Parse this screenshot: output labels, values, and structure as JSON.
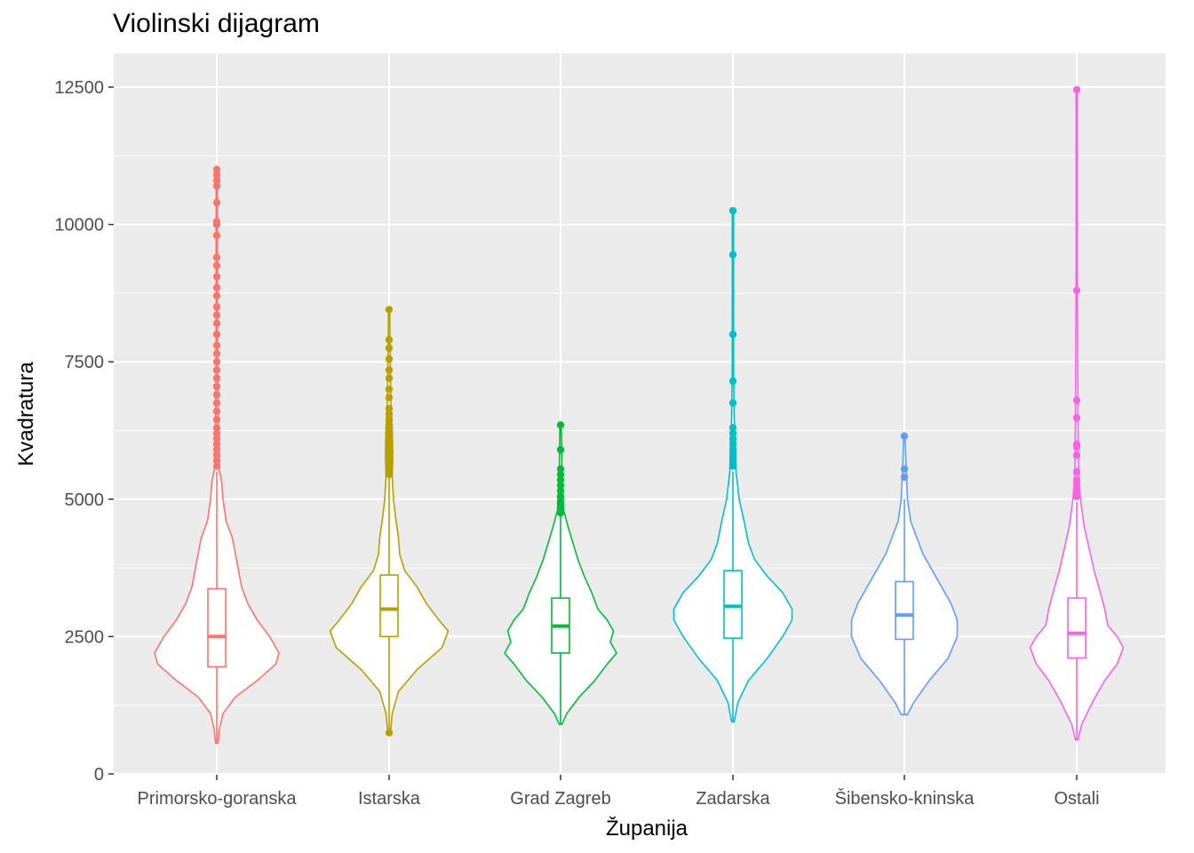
{
  "chart_data": {
    "type": "violin",
    "title": "Violinski dijagram",
    "xlabel": "Županija",
    "ylabel": "Kvadratura",
    "ylim": [
      -300,
      13100
    ],
    "yticks": [
      0,
      2500,
      5000,
      7500,
      10000,
      12500
    ],
    "y_tick_labels": [
      "0",
      "2500",
      "5000",
      "7500",
      "10000",
      "12500"
    ],
    "grid": true,
    "legend": "none",
    "categories": [
      "Primorsko-goranska",
      "Istarska",
      "Grad Zagreb",
      "Zadarska",
      "Šibensko-kninska",
      "Ostali"
    ],
    "series": [
      {
        "name": "Primorsko-goranska",
        "color": "#F8766D",
        "box": {
          "q1": 1950,
          "median": 2500,
          "q3": 3370,
          "whisker_low": 560,
          "whisker_high": 5500
        },
        "outliers": [
          5600,
          5700,
          5800,
          5900,
          6000,
          6100,
          6200,
          6300,
          6450,
          6600,
          6750,
          6900,
          7050,
          7200,
          7350,
          7500,
          7650,
          7800,
          8000,
          8200,
          8350,
          8500,
          8700,
          8850,
          9050,
          9250,
          9400,
          9800,
          10000,
          10050,
          10400,
          10700,
          10800,
          10900,
          11000
        ],
        "density": [
          [
            560,
            0.02
          ],
          [
            800,
            0.04
          ],
          [
            1100,
            0.1
          ],
          [
            1400,
            0.3
          ],
          [
            1700,
            0.65
          ],
          [
            2000,
            0.95
          ],
          [
            2200,
            1.0
          ],
          [
            2500,
            0.85
          ],
          [
            2800,
            0.65
          ],
          [
            3100,
            0.5
          ],
          [
            3400,
            0.4
          ],
          [
            3700,
            0.35
          ],
          [
            4000,
            0.3
          ],
          [
            4300,
            0.25
          ],
          [
            4600,
            0.15
          ],
          [
            5000,
            0.1
          ],
          [
            5300,
            0.08
          ],
          [
            5600,
            0.03
          ],
          [
            6500,
            0.02
          ],
          [
            8000,
            0.01
          ],
          [
            11000,
            0.01
          ]
        ]
      },
      {
        "name": "Istarska",
        "color": "#B79F00",
        "box": {
          "q1": 2500,
          "median": 3000,
          "q3": 3620,
          "whisker_low": 750,
          "whisker_high": 5400
        },
        "outliers": [
          750,
          5450,
          5550,
          5650,
          5750,
          5850,
          5950,
          6050,
          6150,
          6250,
          6350,
          6450,
          6550,
          6650,
          6850,
          7000,
          7200,
          7350,
          7550,
          7750,
          7900,
          8450
        ],
        "density": [
          [
            750,
            0.02
          ],
          [
            1100,
            0.05
          ],
          [
            1500,
            0.15
          ],
          [
            1900,
            0.45
          ],
          [
            2300,
            0.85
          ],
          [
            2600,
            0.95
          ],
          [
            2800,
            0.8
          ],
          [
            3100,
            0.6
          ],
          [
            3400,
            0.45
          ],
          [
            3700,
            0.25
          ],
          [
            4000,
            0.17
          ],
          [
            4300,
            0.15
          ],
          [
            4700,
            0.1
          ],
          [
            5000,
            0.07
          ],
          [
            5400,
            0.05
          ],
          [
            5800,
            0.06
          ],
          [
            6300,
            0.05
          ],
          [
            6700,
            0.03
          ],
          [
            7300,
            0.02
          ],
          [
            8450,
            0.01
          ]
        ]
      },
      {
        "name": "Grad Zagreb",
        "color": "#00BA38",
        "box": {
          "q1": 2200,
          "median": 2690,
          "q3": 3200,
          "whisker_low": 900,
          "whisker_high": 4700
        },
        "outliers": [
          4750,
          4800,
          4850,
          4900,
          4950,
          5050,
          5150,
          5250,
          5350,
          5450,
          5550,
          5900,
          6350
        ],
        "density": [
          [
            900,
            0.02
          ],
          [
            1100,
            0.1
          ],
          [
            1400,
            0.3
          ],
          [
            1700,
            0.55
          ],
          [
            2000,
            0.75
          ],
          [
            2200,
            0.9
          ],
          [
            2400,
            0.8
          ],
          [
            2600,
            0.85
          ],
          [
            2800,
            0.75
          ],
          [
            3000,
            0.6
          ],
          [
            3300,
            0.5
          ],
          [
            3600,
            0.38
          ],
          [
            3900,
            0.28
          ],
          [
            4200,
            0.2
          ],
          [
            4500,
            0.12
          ],
          [
            4800,
            0.05
          ],
          [
            5200,
            0.03
          ],
          [
            5600,
            0.02
          ],
          [
            6350,
            0.01
          ]
        ]
      },
      {
        "name": "Zadarska",
        "color": "#00BFC4",
        "box": {
          "q1": 2470,
          "median": 3050,
          "q3": 3700,
          "whisker_low": 950,
          "whisker_high": 5500
        },
        "outliers": [
          5600,
          5700,
          5800,
          5900,
          6000,
          6100,
          6200,
          6300,
          6750,
          7150,
          8000,
          9450,
          10250
        ],
        "density": [
          [
            950,
            0.02
          ],
          [
            1300,
            0.08
          ],
          [
            1700,
            0.25
          ],
          [
            2100,
            0.55
          ],
          [
            2500,
            0.8
          ],
          [
            2800,
            0.95
          ],
          [
            3000,
            0.95
          ],
          [
            3300,
            0.8
          ],
          [
            3600,
            0.55
          ],
          [
            3900,
            0.35
          ],
          [
            4200,
            0.25
          ],
          [
            4600,
            0.18
          ],
          [
            5000,
            0.1
          ],
          [
            5500,
            0.05
          ],
          [
            6000,
            0.04
          ],
          [
            6500,
            0.02
          ],
          [
            7500,
            0.01
          ],
          [
            10250,
            0.01
          ]
        ]
      },
      {
        "name": "Šibensko-kninska",
        "color": "#619CFF",
        "box": {
          "q1": 2450,
          "median": 2890,
          "q3": 3500,
          "whisker_low": 1080,
          "whisker_high": 5000
        },
        "outliers": [
          5400,
          5550,
          6150
        ],
        "density": [
          [
            1080,
            0.05
          ],
          [
            1300,
            0.15
          ],
          [
            1700,
            0.4
          ],
          [
            2100,
            0.7
          ],
          [
            2500,
            0.85
          ],
          [
            2800,
            0.85
          ],
          [
            3100,
            0.75
          ],
          [
            3400,
            0.6
          ],
          [
            3700,
            0.45
          ],
          [
            4000,
            0.3
          ],
          [
            4300,
            0.2
          ],
          [
            4600,
            0.1
          ],
          [
            5000,
            0.05
          ],
          [
            5500,
            0.03
          ],
          [
            6150,
            0.01
          ]
        ]
      },
      {
        "name": "Ostali",
        "color": "#F564E3",
        "box": {
          "q1": 2110,
          "median": 2560,
          "q3": 3200,
          "whisker_low": 620,
          "whisker_high": 4950
        },
        "outliers": [
          5050,
          5150,
          5250,
          5350,
          5500,
          5800,
          5950,
          6000,
          6480,
          6800,
          8800,
          12450
        ],
        "density": [
          [
            620,
            0.02
          ],
          [
            900,
            0.08
          ],
          [
            1300,
            0.25
          ],
          [
            1700,
            0.45
          ],
          [
            2000,
            0.65
          ],
          [
            2300,
            0.75
          ],
          [
            2500,
            0.65
          ],
          [
            2700,
            0.5
          ],
          [
            3000,
            0.45
          ],
          [
            3300,
            0.38
          ],
          [
            3700,
            0.28
          ],
          [
            4100,
            0.2
          ],
          [
            4500,
            0.12
          ],
          [
            5000,
            0.06
          ],
          [
            5500,
            0.03
          ],
          [
            6500,
            0.02
          ],
          [
            9000,
            0.01
          ],
          [
            12450,
            0.01
          ]
        ]
      }
    ]
  }
}
